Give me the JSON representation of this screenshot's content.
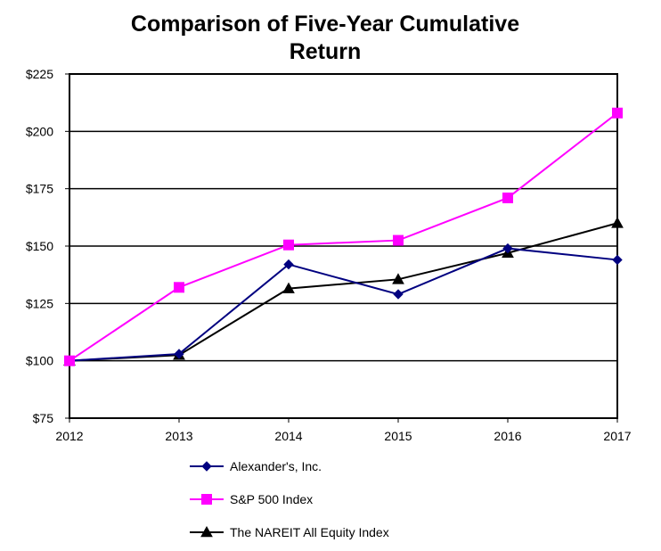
{
  "chart_data": {
    "type": "line",
    "title": "Comparison of Five-Year Cumulative Return",
    "title_lines": [
      "Comparison of Five-Year Cumulative",
      "Return"
    ],
    "xlabel": "",
    "ylabel": "",
    "x": [
      "2012",
      "2013",
      "2014",
      "2015",
      "2016",
      "2017"
    ],
    "ylim": [
      75,
      225
    ],
    "y_ticks": [
      75,
      100,
      125,
      150,
      175,
      200,
      225
    ],
    "y_tick_labels": [
      "$75",
      "$100",
      "$125",
      "$150",
      "$175",
      "$200",
      "$225"
    ],
    "grid": "horizontal",
    "legend_position": "bottom",
    "series": [
      {
        "name": "Alexander's, Inc.",
        "values": [
          100,
          103,
          142,
          129,
          149,
          144
        ],
        "color": "#000080",
        "marker": "diamond"
      },
      {
        "name": "S&P 500 Index",
        "values": [
          100,
          132,
          150.5,
          152.5,
          171,
          208
        ],
        "color": "#ff00ff",
        "marker": "square"
      },
      {
        "name": "The NAREIT All Equity Index",
        "values": [
          100,
          102.5,
          131.5,
          135.5,
          147,
          160
        ],
        "color": "#000000",
        "marker": "triangle"
      }
    ]
  }
}
